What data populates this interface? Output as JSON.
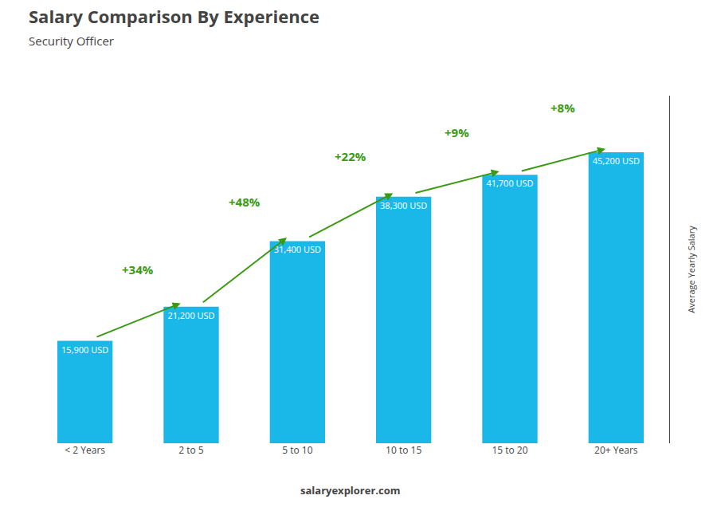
{
  "chart_data": {
    "type": "bar",
    "title": "Salary Comparison By Experience",
    "subtitle": "Security Officer",
    "ylabel": "Average Yearly Salary",
    "categories": [
      "< 2 Years",
      "2 to 5",
      "5 to 10",
      "10 to 15",
      "15 to 20",
      "20+ Years"
    ],
    "values": [
      15900,
      21200,
      31400,
      38300,
      41700,
      45200
    ],
    "value_labels": [
      "15,900 USD",
      "21,200 USD",
      "31,400 USD",
      "38,300 USD",
      "41,700 USD",
      "45,200 USD"
    ],
    "data_labels": true,
    "pct_changes": [
      "+34%",
      "+48%",
      "+22%",
      "+9%",
      "+8%"
    ],
    "annotations": [
      "salaryexplorer.com"
    ],
    "color": "#1ab8e8",
    "ylim": [
      0,
      54000
    ],
    "grid": false,
    "tick_labels": "x"
  }
}
